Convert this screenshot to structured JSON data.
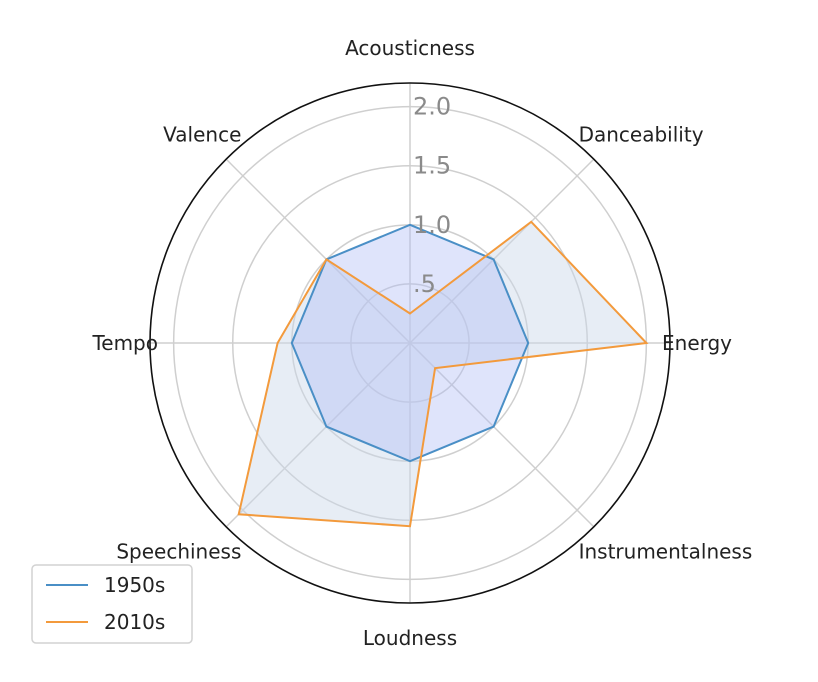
{
  "chart_data": {
    "type": "radar",
    "categories": [
      "Acousticness",
      "Danceability",
      "Energy",
      "Instrumentalness",
      "Loudness",
      "Speechiness",
      "Tempo",
      "Valence"
    ],
    "rlim": [
      0,
      2.2
    ],
    "rticks": [
      0.5,
      1.0,
      1.5,
      2.0
    ],
    "rtick_labels": [
      ".5",
      "1.0",
      "1.5",
      "2.0"
    ],
    "grid": true,
    "legend_position": "lower-left",
    "series": [
      {
        "name": "1950s",
        "color": "#4a8fc6",
        "fill": "#aebbf5",
        "fill_opacity": 0.4,
        "values": [
          1.0,
          1.0,
          1.0,
          1.0,
          1.0,
          1.0,
          1.0,
          1.0
        ]
      },
      {
        "name": "2010s",
        "color": "#f39a3c",
        "fill": "#c9d7e8",
        "fill_opacity": 0.45,
        "values": [
          0.25,
          1.45,
          2.0,
          0.3,
          1.55,
          2.05,
          1.12,
          1.0
        ]
      }
    ]
  }
}
